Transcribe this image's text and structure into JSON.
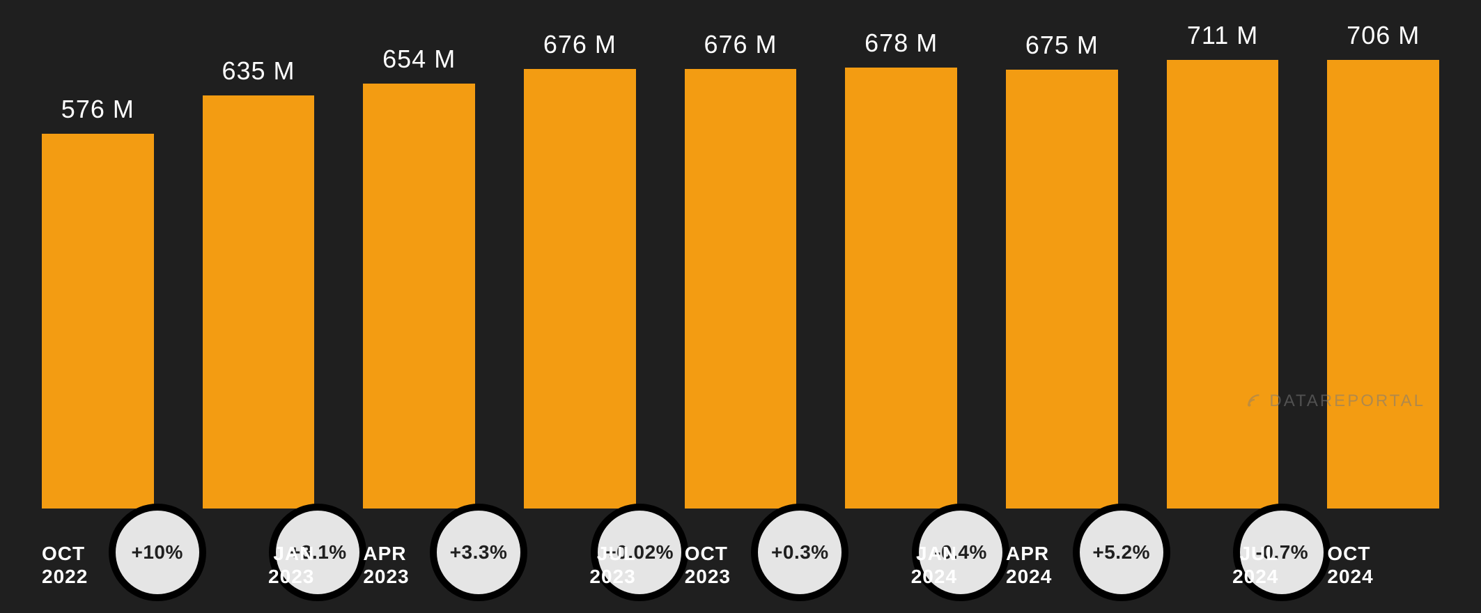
{
  "chart": {
    "type": "bar",
    "background_color": "#1f1f1f",
    "bar_color": "#f39c12",
    "text_color": "#ffffff",
    "value_label_fontsize": 36,
    "axis_label_fontsize": 28,
    "y_max": 750,
    "bars": [
      {
        "month": "OCT",
        "year": "2022",
        "value": 576,
        "label": "576 M"
      },
      {
        "month": "JAN",
        "year": "2023",
        "value": 635,
        "label": "635 M"
      },
      {
        "month": "APR",
        "year": "2023",
        "value": 654,
        "label": "654 M"
      },
      {
        "month": "JUL",
        "year": "2023",
        "value": 676,
        "label": "676 M"
      },
      {
        "month": "OCT",
        "year": "2023",
        "value": 676,
        "label": "676 M"
      },
      {
        "month": "JAN",
        "year": "2024",
        "value": 678,
        "label": "678 M"
      },
      {
        "month": "APR",
        "year": "2024",
        "value": 675,
        "label": "675 M"
      },
      {
        "month": "JUL",
        "year": "2024",
        "value": 711,
        "label": "711 M"
      },
      {
        "month": "OCT",
        "year": "2024",
        "value": 706,
        "label": "706 M"
      }
    ],
    "deltas": [
      {
        "label": "+10%"
      },
      {
        "label": "+3.1%"
      },
      {
        "label": "+3.3%"
      },
      {
        "label": "+0.02%"
      },
      {
        "label": "+0.3%"
      },
      {
        "label": "-0.4%"
      },
      {
        "label": "+5.2%"
      },
      {
        "label": "-0.7%"
      }
    ],
    "delta_circle": {
      "fill": "#e5e5e5",
      "stroke": "#000000",
      "stroke_width": 10,
      "text_color": "#1f1f1f",
      "fontsize": 28,
      "diameter": 140
    }
  },
  "watermark": {
    "text": "DATAREPORTAL",
    "color": "#7a7a7a",
    "fontsize": 24
  }
}
